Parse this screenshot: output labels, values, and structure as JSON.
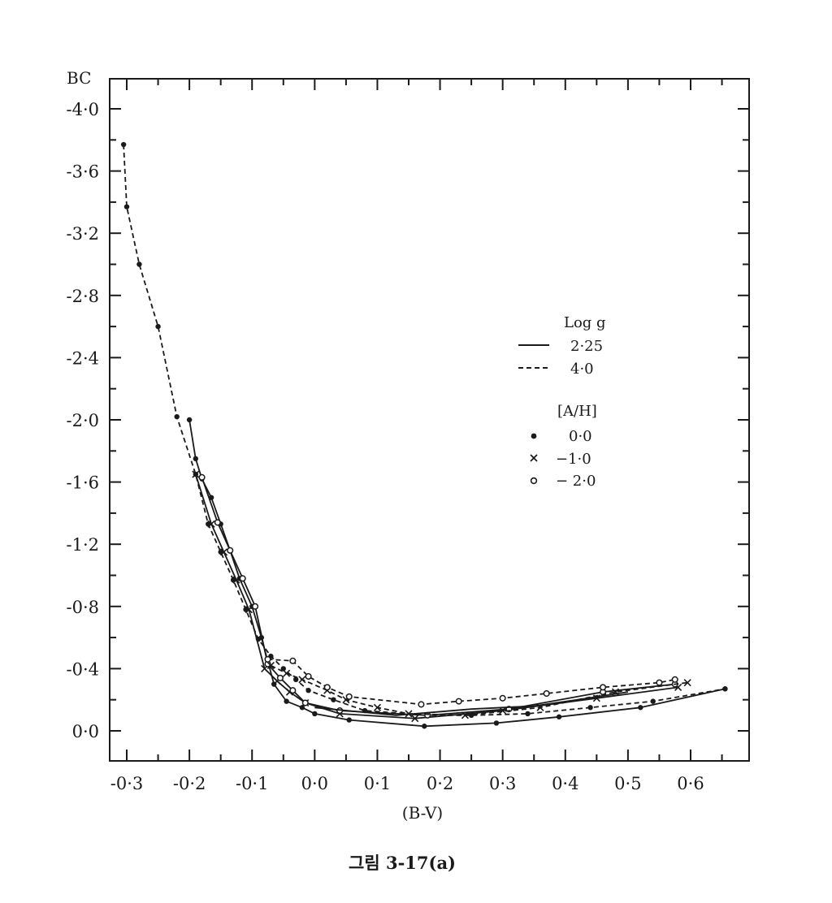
{
  "caption": "그림 3-17(a)",
  "chart_data": {
    "type": "line",
    "title": "",
    "xlabel": "(B-V)",
    "ylabel": "BC",
    "xlim": [
      -0.35,
      0.68
    ],
    "ylim": [
      0.2,
      -4.2
    ],
    "y_inverted": true,
    "x_ticks": [
      -0.3,
      -0.2,
      -0.1,
      0.0,
      0.1,
      0.2,
      0.3,
      0.4,
      0.5,
      0.6
    ],
    "x_tick_labels": [
      "-0·3",
      "-0·2",
      "-0·1",
      "0·0",
      "0·1",
      "0·2",
      "0·3",
      "0·4",
      "0·5",
      "0·6"
    ],
    "y_ticks": [
      -4.0,
      -3.6,
      -3.2,
      -2.8,
      -2.4,
      -2.0,
      -1.6,
      -1.2,
      -0.8,
      -0.4,
      0.0
    ],
    "y_tick_labels": [
      "-4·0",
      "-3·6",
      "-3·2",
      "-2·8",
      "-2·4",
      "-2·0",
      "-1·6",
      "-1·2",
      "-0·8",
      "-0·4",
      "0·0"
    ],
    "legend": {
      "placement": "center-right",
      "gravity_title": "Log g",
      "gravity_entries": [
        {
          "style": "solid",
          "label": "2·25"
        },
        {
          "style": "dashed",
          "label": "4·0"
        }
      ],
      "metallicity_title": "[A/H]",
      "metallicity_entries": [
        {
          "marker": "dot",
          "label": "0·0"
        },
        {
          "marker": "cross",
          "label": "−1·0"
        },
        {
          "marker": "circle",
          "label": "− 2·0"
        }
      ]
    },
    "series": [
      {
        "logg": "4·0",
        "ah": "0·0",
        "line": "dashed",
        "marker": "dot",
        "x": [
          -0.305,
          -0.3,
          -0.28,
          -0.25,
          -0.22,
          -0.19,
          -0.17,
          -0.15,
          -0.13,
          -0.11,
          -0.09,
          -0.07,
          -0.05,
          -0.03,
          -0.01,
          0.03,
          0.08,
          0.18,
          0.25,
          0.34,
          0.44,
          0.54,
          0.655
        ],
        "y": [
          -3.77,
          -3.37,
          -3.0,
          -2.6,
          -2.02,
          -1.65,
          -1.33,
          -1.15,
          -0.97,
          -0.78,
          -0.59,
          -0.48,
          -0.4,
          -0.33,
          -0.26,
          -0.2,
          -0.13,
          -0.1,
          -0.1,
          -0.11,
          -0.15,
          -0.19,
          -0.27
        ]
      },
      {
        "logg": "2·25",
        "ah": "0·0",
        "line": "solid",
        "marker": "dot",
        "x": [
          -0.2,
          -0.19,
          -0.18,
          -0.165,
          -0.15,
          -0.135,
          -0.12,
          -0.1,
          -0.085,
          -0.065,
          -0.045,
          -0.02,
          0.0,
          0.055,
          0.175,
          0.29,
          0.39,
          0.52,
          0.655
        ],
        "y": [
          -2.0,
          -1.75,
          -1.62,
          -1.5,
          -1.33,
          -1.16,
          -0.98,
          -0.8,
          -0.6,
          -0.3,
          -0.19,
          -0.15,
          -0.11,
          -0.07,
          -0.03,
          -0.05,
          -0.09,
          -0.15,
          -0.27
        ]
      },
      {
        "logg": "2·25",
        "ah": "−1·0",
        "line": "solid",
        "marker": "cross",
        "x": [
          -0.19,
          -0.165,
          -0.145,
          -0.125,
          -0.105,
          -0.08,
          -0.06,
          -0.04,
          -0.015,
          0.04,
          0.16,
          0.3,
          0.45,
          0.58
        ],
        "y": [
          -1.65,
          -1.33,
          -1.15,
          -0.97,
          -0.78,
          -0.4,
          -0.32,
          -0.25,
          -0.18,
          -0.11,
          -0.08,
          -0.13,
          -0.21,
          -0.28
        ]
      },
      {
        "logg": "2·25",
        "ah": "− 2·0",
        "line": "solid",
        "marker": "circle",
        "x": [
          -0.18,
          -0.155,
          -0.135,
          -0.115,
          -0.095,
          -0.075,
          -0.055,
          -0.035,
          -0.015,
          0.04,
          0.18,
          0.31,
          0.46,
          0.575
        ],
        "y": [
          -1.63,
          -1.34,
          -1.16,
          -0.98,
          -0.8,
          -0.43,
          -0.34,
          -0.26,
          -0.18,
          -0.13,
          -0.1,
          -0.14,
          -0.25,
          -0.3
        ]
      },
      {
        "logg": "4·0",
        "ah": "−1·0",
        "line": "dashed",
        "marker": "cross",
        "x": [
          -0.07,
          -0.045,
          -0.02,
          0.02,
          0.05,
          0.1,
          0.15,
          0.24,
          0.36,
          0.48,
          0.595
        ],
        "y": [
          -0.42,
          -0.37,
          -0.33,
          -0.26,
          -0.2,
          -0.15,
          -0.11,
          -0.1,
          -0.15,
          -0.25,
          -0.31
        ]
      },
      {
        "logg": "4·0",
        "ah": "− 2·0",
        "line": "dashed",
        "marker": "circle",
        "x": [
          -0.075,
          -0.035,
          -0.01,
          0.02,
          0.055,
          0.17,
          0.23,
          0.3,
          0.37,
          0.46,
          0.55,
          0.575
        ],
        "y": [
          -0.46,
          -0.45,
          -0.35,
          -0.28,
          -0.22,
          -0.17,
          -0.19,
          -0.21,
          -0.24,
          -0.28,
          -0.31,
          -0.33
        ]
      },
      {
        "logg": "2·25",
        "ah": "0·0",
        "line": "solid",
        "marker": "none",
        "x": [
          0.0,
          0.13,
          0.25,
          0.35,
          0.42,
          0.5
        ],
        "y": [
          -0.15,
          -0.1,
          -0.14,
          -0.16,
          -0.2,
          -0.25
        ]
      }
    ]
  }
}
